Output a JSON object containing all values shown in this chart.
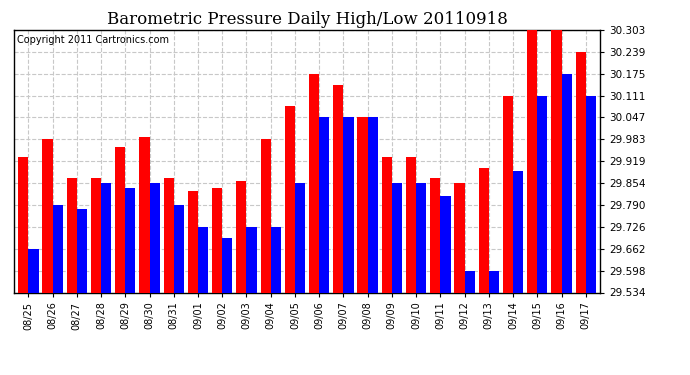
{
  "title": "Barometric Pressure Daily High/Low 20110918",
  "copyright": "Copyright 2011 Cartronics.com",
  "categories": [
    "08/25",
    "08/26",
    "08/27",
    "08/28",
    "08/29",
    "08/30",
    "08/31",
    "09/01",
    "09/02",
    "09/03",
    "09/04",
    "09/05",
    "09/06",
    "09/07",
    "09/08",
    "09/09",
    "09/10",
    "09/11",
    "09/12",
    "09/13",
    "09/14",
    "09/15",
    "09/16",
    "09/17"
  ],
  "highs": [
    29.93,
    29.983,
    29.87,
    29.87,
    29.96,
    29.99,
    29.87,
    29.83,
    29.84,
    29.86,
    29.983,
    30.079,
    30.175,
    30.143,
    30.047,
    29.93,
    29.93,
    29.87,
    29.854,
    29.9,
    30.111,
    30.303,
    30.303,
    30.239
  ],
  "lows": [
    29.662,
    29.79,
    29.78,
    29.854,
    29.84,
    29.854,
    29.79,
    29.726,
    29.694,
    29.726,
    29.726,
    29.854,
    30.047,
    30.047,
    30.047,
    29.854,
    29.854,
    29.818,
    29.598,
    29.598,
    29.89,
    30.111,
    30.175,
    30.111
  ],
  "high_color": "#ff0000",
  "low_color": "#0000ff",
  "bg_color": "#ffffff",
  "grid_color": "#c8c8c8",
  "ymin": 29.534,
  "ymax": 30.303,
  "ytick_values": [
    29.534,
    29.598,
    29.662,
    29.726,
    29.79,
    29.854,
    29.919,
    29.983,
    30.047,
    30.111,
    30.175,
    30.239,
    30.303
  ],
  "bar_width": 0.42,
  "title_fontsize": 12,
  "copyright_fontsize": 7
}
